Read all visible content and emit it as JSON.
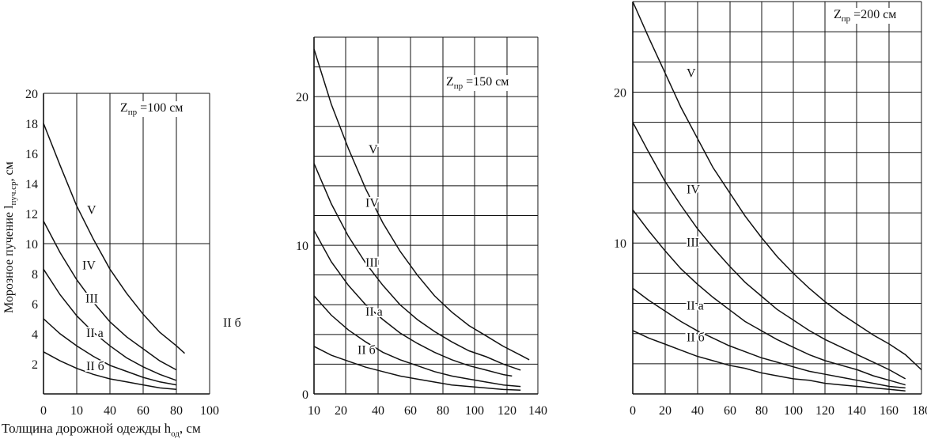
{
  "figure": {
    "y_axis_label": "Морозное пучение l",
    "y_axis_label_sub": "пуч.ср",
    "y_axis_label_unit": ", см",
    "x_axis_label": "Толщина дорожной одежды h",
    "x_axis_label_sub": "од",
    "x_axis_label_unit": ", см",
    "stray_label": "II б"
  },
  "chart_data": [
    {
      "type": "line",
      "title": "Zпр =100 см",
      "title_main": "Z",
      "title_sub": "пр",
      "title_rest": " =100 см",
      "xlabel": "Толщина дорожной одежды hод, см",
      "ylabel": "Морозное пучение lпуч.ср, см",
      "xlim": [
        0,
        100
      ],
      "ylim": [
        0,
        20
      ],
      "x_ticks": [
        "0",
        "10",
        "40",
        "60",
        "80",
        "100"
      ],
      "y_ticks": [
        "2",
        "4",
        "6",
        "8",
        "10",
        "12",
        "14",
        "16",
        "18",
        "20"
      ],
      "grid": true,
      "series": [
        {
          "name": "V",
          "x": [
            0,
            10,
            20,
            30,
            40,
            50,
            60,
            70,
            80,
            85
          ],
          "y": [
            18.0,
            15.2,
            12.5,
            10.3,
            8.3,
            6.7,
            5.3,
            4.1,
            3.2,
            2.7
          ]
        },
        {
          "name": "IV",
          "x": [
            0,
            10,
            20,
            30,
            40,
            50,
            60,
            70,
            80
          ],
          "y": [
            11.5,
            9.4,
            7.6,
            6.1,
            4.8,
            3.8,
            3.0,
            2.2,
            1.6
          ]
        },
        {
          "name": "III",
          "x": [
            0,
            10,
            20,
            30,
            40,
            50,
            60,
            70,
            80
          ],
          "y": [
            8.3,
            6.6,
            5.2,
            4.1,
            3.2,
            2.4,
            1.8,
            1.3,
            0.9
          ]
        },
        {
          "name": "II а",
          "x": [
            0,
            10,
            20,
            30,
            40,
            50,
            60,
            70,
            80
          ],
          "y": [
            5.0,
            4.0,
            3.2,
            2.5,
            1.9,
            1.5,
            1.1,
            0.8,
            0.6
          ]
        },
        {
          "name": "II б",
          "x": [
            0,
            10,
            20,
            30,
            40,
            50,
            60,
            70,
            80
          ],
          "y": [
            2.8,
            2.2,
            1.7,
            1.3,
            1.0,
            0.8,
            0.6,
            0.4,
            0.3
          ]
        }
      ]
    },
    {
      "type": "line",
      "title": "Zпр =150 см",
      "title_main": "Z",
      "title_sub": "пр",
      "title_rest": " =150 см",
      "xlim": [
        10,
        140
      ],
      "ylim": [
        0,
        24
      ],
      "x_ticks": [
        "10",
        "20",
        "40",
        "60",
        "80",
        "100",
        "120",
        "140"
      ],
      "y_ticks": [
        "0",
        "10",
        "20"
      ],
      "grid": true,
      "series": [
        {
          "name": "V",
          "x": [
            10,
            20,
            30,
            40,
            50,
            60,
            70,
            80,
            90,
            100,
            110,
            120,
            130,
            135
          ],
          "y": [
            23.2,
            19.5,
            16.5,
            13.8,
            11.5,
            9.6,
            8.0,
            6.6,
            5.5,
            4.6,
            3.9,
            3.2,
            2.6,
            2.3
          ]
        },
        {
          "name": "IV",
          "x": [
            10,
            20,
            30,
            40,
            50,
            60,
            70,
            80,
            90,
            100,
            110,
            120,
            130
          ],
          "y": [
            15.5,
            12.8,
            10.6,
            8.8,
            7.3,
            6.0,
            5.0,
            4.2,
            3.5,
            2.9,
            2.5,
            2.0,
            1.6
          ]
        },
        {
          "name": "III",
          "x": [
            10,
            20,
            30,
            40,
            50,
            60,
            70,
            80,
            90,
            100,
            110,
            120,
            125
          ],
          "y": [
            11.0,
            8.9,
            7.3,
            6.0,
            5.0,
            4.1,
            3.4,
            2.8,
            2.3,
            1.9,
            1.6,
            1.3,
            1.2
          ]
        },
        {
          "name": "II а",
          "x": [
            10,
            20,
            30,
            40,
            50,
            60,
            70,
            80,
            90,
            100,
            110,
            120,
            130
          ],
          "y": [
            6.6,
            5.3,
            4.3,
            3.5,
            2.8,
            2.3,
            1.9,
            1.5,
            1.2,
            1.0,
            0.8,
            0.6,
            0.5
          ]
        },
        {
          "name": "II б",
          "x": [
            10,
            20,
            30,
            40,
            50,
            60,
            70,
            80,
            90,
            100,
            110,
            120,
            130
          ],
          "y": [
            3.2,
            2.6,
            2.2,
            1.8,
            1.5,
            1.2,
            1.0,
            0.8,
            0.6,
            0.5,
            0.4,
            0.3,
            0.25
          ]
        }
      ]
    },
    {
      "type": "line",
      "title": "Zпр =200 см",
      "title_main": "Z",
      "title_sub": "пр",
      "title_rest": " =200 см",
      "xlim": [
        0,
        180
      ],
      "ylim": [
        0,
        26
      ],
      "x_ticks": [
        "0",
        "20",
        "40",
        "60",
        "80",
        "100",
        "120",
        "140",
        "160",
        "180"
      ],
      "y_ticks": [
        "10",
        "20"
      ],
      "grid": true,
      "series": [
        {
          "name": "V",
          "x": [
            0,
            10,
            20,
            30,
            40,
            50,
            60,
            70,
            80,
            90,
            100,
            110,
            120,
            130,
            140,
            150,
            160,
            170,
            180
          ],
          "y": [
            26.0,
            23.6,
            21.3,
            19.0,
            17.0,
            15.0,
            13.4,
            11.8,
            10.4,
            9.1,
            8.0,
            7.0,
            6.1,
            5.3,
            4.6,
            3.9,
            3.3,
            2.6,
            1.6
          ]
        },
        {
          "name": "IV",
          "x": [
            0,
            10,
            20,
            30,
            40,
            50,
            60,
            70,
            80,
            90,
            100,
            110,
            120,
            130,
            140,
            150,
            160,
            170
          ],
          "y": [
            18.0,
            16.0,
            14.1,
            12.5,
            11.0,
            9.7,
            8.5,
            7.4,
            6.5,
            5.6,
            4.9,
            4.2,
            3.6,
            3.1,
            2.6,
            2.1,
            1.6,
            1.0
          ]
        },
        {
          "name": "III",
          "x": [
            0,
            10,
            20,
            30,
            40,
            50,
            60,
            70,
            80,
            90,
            100,
            110,
            120,
            130,
            140,
            150,
            160,
            170
          ],
          "y": [
            12.2,
            10.8,
            9.5,
            8.3,
            7.3,
            6.4,
            5.6,
            4.8,
            4.2,
            3.6,
            3.1,
            2.6,
            2.2,
            1.9,
            1.6,
            1.2,
            0.9,
            0.6
          ]
        },
        {
          "name": "II а",
          "x": [
            0,
            10,
            20,
            30,
            40,
            50,
            60,
            70,
            80,
            90,
            100,
            110,
            120,
            130,
            140,
            150,
            160,
            170
          ],
          "y": [
            7.0,
            6.2,
            5.5,
            4.8,
            4.2,
            3.7,
            3.2,
            2.8,
            2.4,
            2.1,
            1.8,
            1.5,
            1.3,
            1.1,
            0.9,
            0.7,
            0.5,
            0.4
          ]
        },
        {
          "name": "II б",
          "x": [
            0,
            10,
            20,
            30,
            40,
            50,
            60,
            70,
            80,
            90,
            100,
            110,
            120,
            130,
            140,
            150,
            160,
            170
          ],
          "y": [
            4.2,
            3.7,
            3.3,
            2.9,
            2.5,
            2.2,
            1.9,
            1.7,
            1.4,
            1.2,
            1.0,
            0.9,
            0.7,
            0.6,
            0.5,
            0.4,
            0.3,
            0.2
          ]
        }
      ]
    }
  ]
}
